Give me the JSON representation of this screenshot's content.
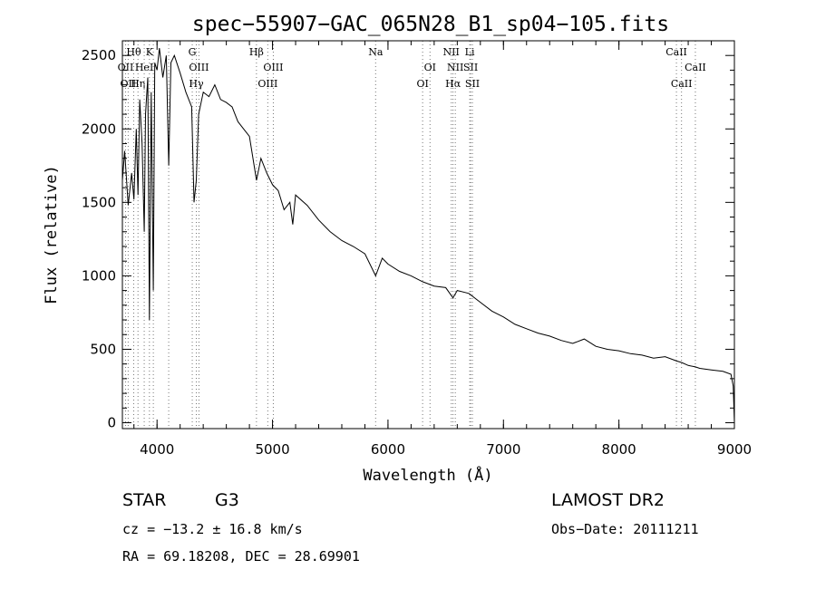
{
  "chart_data": {
    "type": "line",
    "title": "spec−55907−GAC_065N28_B1_sp04−105.fits",
    "xlabel": "Wavelength (Å)",
    "ylabel": "Flux (relative)",
    "xlim": [
      3700,
      9000
    ],
    "ylim": [
      -40,
      2600
    ],
    "xticks": [
      4000,
      5000,
      6000,
      7000,
      8000,
      9000
    ],
    "yticks": [
      0,
      500,
      1000,
      1500,
      2000,
      2500
    ],
    "grid": false,
    "series": [
      {
        "x": [
          3700,
          3720,
          3750,
          3780,
          3800,
          3820,
          3835,
          3850,
          3870,
          3889,
          3900,
          3920,
          3934,
          3950,
          3968,
          3980,
          4000,
          4020,
          4050,
          4080,
          4101,
          4120,
          4150,
          4200,
          4250,
          4300,
          4320,
          4340,
          4360,
          4400,
          4450,
          4500,
          4550,
          4600,
          4650,
          4700,
          4750,
          4800,
          4861,
          4900,
          4950,
          5000,
          5050,
          5100,
          5150,
          5175,
          5200,
          5300,
          5400,
          5500,
          5600,
          5700,
          5800,
          5893,
          5950,
          6000,
          6100,
          6200,
          6300,
          6400,
          6500,
          6563,
          6600,
          6700,
          6800,
          6900,
          7000,
          7100,
          7200,
          7300,
          7400,
          7500,
          7600,
          7700,
          7800,
          7900,
          8000,
          8100,
          8200,
          8300,
          8400,
          8500,
          8542,
          8600,
          8662,
          8700,
          8800,
          8900,
          8970,
          8990,
          9000
        ],
        "y": [
          1650,
          1850,
          1480,
          1700,
          1520,
          2000,
          1550,
          2200,
          1900,
          1300,
          2100,
          2350,
          700,
          2250,
          900,
          2450,
          2400,
          2550,
          2350,
          2500,
          1750,
          2450,
          2500,
          2380,
          2250,
          2150,
          1500,
          1650,
          2100,
          2250,
          2220,
          2300,
          2200,
          2180,
          2150,
          2050,
          2000,
          1950,
          1650,
          1800,
          1700,
          1620,
          1580,
          1450,
          1500,
          1350,
          1550,
          1480,
          1380,
          1300,
          1240,
          1200,
          1150,
          1000,
          1120,
          1080,
          1030,
          1000,
          960,
          930,
          920,
          850,
          900,
          880,
          820,
          760,
          720,
          670,
          640,
          610,
          590,
          560,
          540,
          570,
          520,
          500,
          490,
          470,
          460,
          440,
          450,
          420,
          410,
          390,
          380,
          370,
          360,
          350,
          330,
          250,
          0
        ]
      }
    ],
    "line_markers": [
      {
        "wavelength": 3727,
        "label": "OII",
        "row": 1
      },
      {
        "wavelength": 3750,
        "label": "OII",
        "row": 2
      },
      {
        "wavelength": 3798,
        "label": "Hθ",
        "row": 0
      },
      {
        "wavelength": 3835,
        "label": "Hη",
        "row": 2
      },
      {
        "wavelength": 3889,
        "label": "HeI",
        "row": 1
      },
      {
        "wavelength": 3934,
        "label": "K",
        "row": 0
      },
      {
        "wavelength": 3968,
        "label": "",
        "row": 0
      },
      {
        "wavelength": 4101,
        "label": "",
        "row": 0
      },
      {
        "wavelength": 4305,
        "label": "G",
        "row": 0
      },
      {
        "wavelength": 4340,
        "label": "Hγ",
        "row": 2
      },
      {
        "wavelength": 4363,
        "label": "OIII",
        "row": 1
      },
      {
        "wavelength": 4861,
        "label": "Hβ",
        "row": 0
      },
      {
        "wavelength": 4959,
        "label": "OIII",
        "row": 2
      },
      {
        "wavelength": 5007,
        "label": "OIII",
        "row": 1
      },
      {
        "wavelength": 5893,
        "label": "Na",
        "row": 0
      },
      {
        "wavelength": 6300,
        "label": "OI",
        "row": 2
      },
      {
        "wavelength": 6364,
        "label": "OI",
        "row": 1
      },
      {
        "wavelength": 6548,
        "label": "NII",
        "row": 0
      },
      {
        "wavelength": 6563,
        "label": "Hα",
        "row": 2
      },
      {
        "wavelength": 6583,
        "label": "NII",
        "row": 1
      },
      {
        "wavelength": 6708,
        "label": "Li",
        "row": 0
      },
      {
        "wavelength": 6716,
        "label": "SII",
        "row": 1
      },
      {
        "wavelength": 6731,
        "label": "SII",
        "row": 2
      },
      {
        "wavelength": 8498,
        "label": "CaII",
        "row": 0
      },
      {
        "wavelength": 8542,
        "label": "CaII",
        "row": 2
      },
      {
        "wavelength": 8662,
        "label": "CaII",
        "row": 1
      }
    ]
  },
  "info": {
    "object_class": "STAR",
    "subclass": "G3",
    "survey": "LAMOST DR2",
    "cz_text": "cz = −13.2 ± 16.8 km/s",
    "obs_date_text": "Obs−Date: 20111211",
    "coords_text": "RA =  69.18208, DEC =  28.69901"
  }
}
